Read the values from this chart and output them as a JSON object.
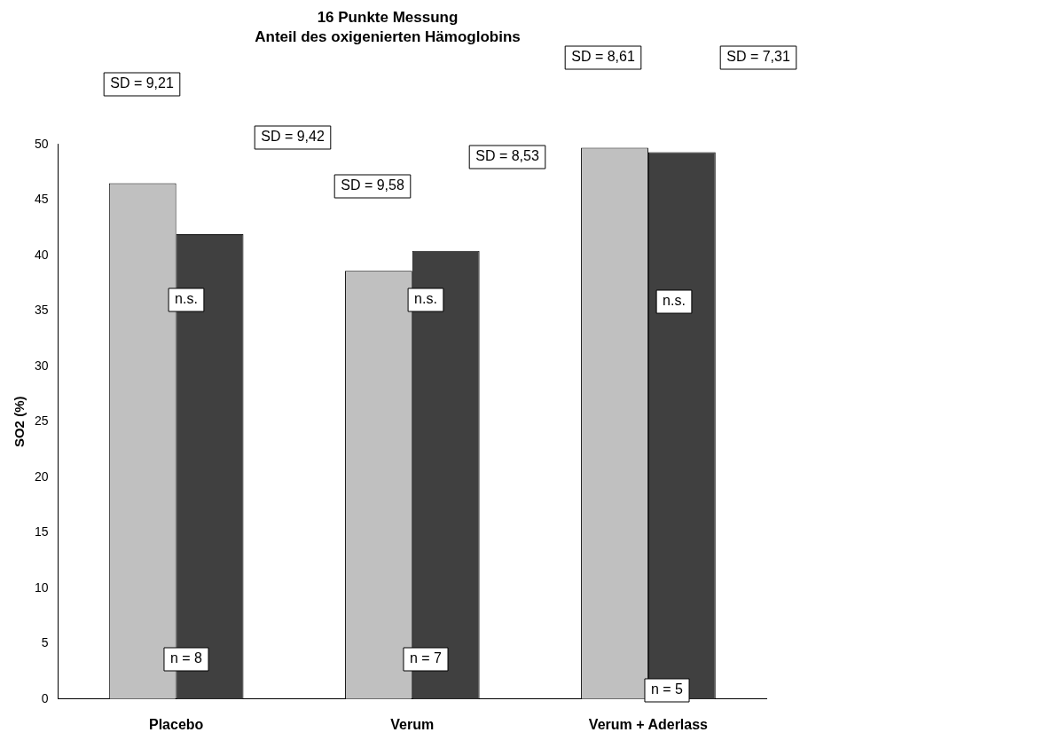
{
  "chart_data": {
    "type": "bar",
    "title": "16 Punkte Messung",
    "subtitle": "Anteil des oxigenierten Hämoglobins",
    "ylabel": "SO2 (%)",
    "categories": [
      "Placebo",
      "Verum",
      "Verum + Aderlass"
    ],
    "series": [
      {
        "color": "#c0c0c0",
        "values": [
          46.5,
          38.6,
          49.7
        ]
      },
      {
        "color": "#404040",
        "values": [
          41.9,
          40.4,
          49.3
        ]
      }
    ],
    "ylim": [
      0,
      50
    ],
    "yticks": [
      0,
      5,
      10,
      15,
      20,
      25,
      30,
      35,
      40,
      45,
      50
    ],
    "grid": false,
    "legend": false,
    "annotations": [
      "SD = 9,21",
      "SD = 9,42",
      "SD = 9,58",
      "SD = 8,53",
      "SD = 8,61",
      "SD = 7,31",
      "n.s.",
      "n.s.",
      "n.s.",
      "n = 8",
      "n = 7",
      "n = 5"
    ]
  }
}
